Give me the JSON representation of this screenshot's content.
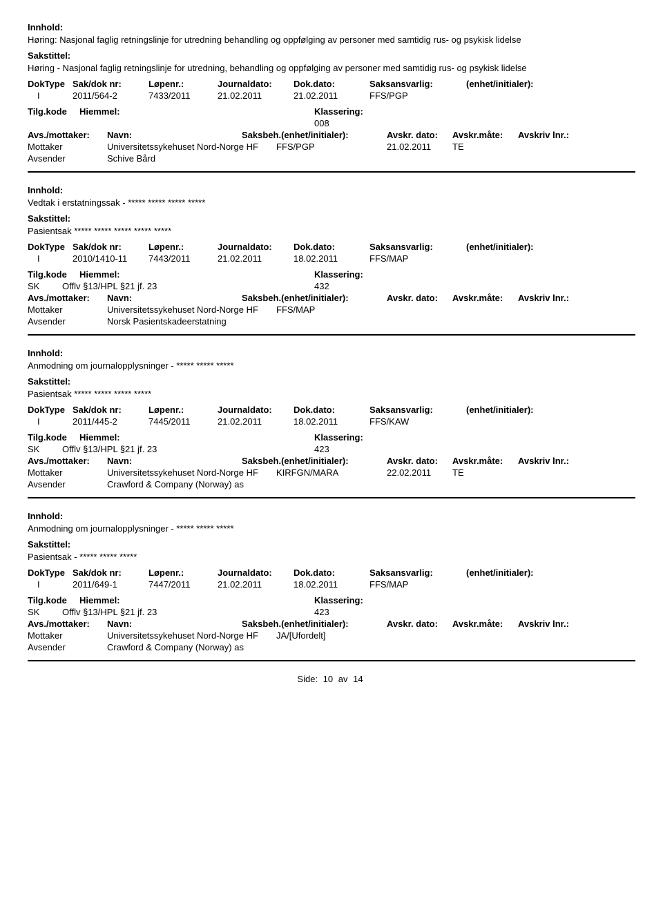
{
  "labels": {
    "innhold": "Innhold:",
    "sakstittel": "Sakstittel:",
    "doktype": "DokType",
    "sakdok": "Sak/dok nr:",
    "lopenr": "Løpenr.:",
    "journaldato": "Journaldato:",
    "dokdato": "Dok.dato:",
    "saksansvarlig": "Saksansvarlig:",
    "enhet": "(enhet/initialer):",
    "tilgkode": "Tilg.kode",
    "hjemmel": "Hiemmel:",
    "klassering": "Klassering:",
    "avsmottaker": "Avs./mottaker:",
    "navn": "Navn:",
    "saksbeh": "Saksbeh.(enhet/initialer):",
    "avskrdato": "Avskr. dato:",
    "avskrmate": "Avskr.måte:",
    "avskrivlnr": "Avskriv lnr.:",
    "mottaker": "Mottaker",
    "avsender": "Avsender",
    "side": "Side:",
    "av": "av"
  },
  "page": {
    "current": "10",
    "total": "14"
  },
  "entries": [
    {
      "innhold": "Høring: Nasjonal faglig retningslinje for utredning behandling og oppfølging av personer med samtidig rus- og psykisk lidelse",
      "sakstittel": "Høring - Nasjonal faglig retningslinje for utredning, behandling og oppfølging av personer med samtidig rus- og psykisk lidelse",
      "doktype": "I",
      "sakdok": "2011/564-2",
      "lopenr": "7433/2011",
      "journaldato": "21.02.2011",
      "dokdato": "21.02.2011",
      "saksansvarlig": "FFS/PGP",
      "tilgkode": "",
      "hjemmel": "",
      "klassering": "008",
      "mottaker_navn": "Universitetssykehuset Nord-Norge HF",
      "mottaker_saksbeh": "FFS/PGP",
      "mottaker_avskrdato": "21.02.2011",
      "mottaker_avskrmate": "TE",
      "avsender_navn": "Schive Bård"
    },
    {
      "innhold": "Vedtak i erstatningssak - ***** ***** ***** *****",
      "sakstittel": "Pasientsak ***** ***** ***** ***** *****",
      "doktype": "I",
      "sakdok": "2010/1410-11",
      "lopenr": "7443/2011",
      "journaldato": "21.02.2011",
      "dokdato": "18.02.2011",
      "saksansvarlig": "FFS/MAP",
      "tilgkode": "SK",
      "hjemmel": "Offlv §13/HPL §21 jf. 23",
      "klassering": "432",
      "mottaker_navn": "Universitetssykehuset Nord-Norge HF",
      "mottaker_saksbeh": "FFS/MAP",
      "mottaker_avskrdato": "",
      "mottaker_avskrmate": "",
      "avsender_navn": "Norsk Pasientskadeerstatning"
    },
    {
      "innhold": "Anmodning om journalopplysninger - ***** ***** *****",
      "sakstittel": "Pasientsak ***** ***** ***** *****",
      "doktype": "I",
      "sakdok": "2011/445-2",
      "lopenr": "7445/2011",
      "journaldato": "21.02.2011",
      "dokdato": "18.02.2011",
      "saksansvarlig": "FFS/KAW",
      "tilgkode": "SK",
      "hjemmel": "Offlv §13/HPL §21 jf. 23",
      "klassering": "423",
      "mottaker_navn": "Universitetssykehuset Nord-Norge HF",
      "mottaker_saksbeh": "KIRFGN/MARA",
      "mottaker_avskrdato": "22.02.2011",
      "mottaker_avskrmate": "TE",
      "avsender_navn": "Crawford & Company (Norway) as"
    },
    {
      "innhold": "Anmodning om journalopplysninger - ***** ***** *****",
      "sakstittel": "Pasientsak - ***** ***** *****",
      "doktype": "I",
      "sakdok": "2011/649-1",
      "lopenr": "7447/2011",
      "journaldato": "21.02.2011",
      "dokdato": "18.02.2011",
      "saksansvarlig": "FFS/MAP",
      "tilgkode": "SK",
      "hjemmel": "Offlv §13/HPL §21 jf. 23",
      "klassering": "423",
      "mottaker_navn": "Universitetssykehuset Nord-Norge HF",
      "mottaker_saksbeh": "JA/[Ufordelt]",
      "mottaker_avskrdato": "",
      "mottaker_avskrmate": "",
      "avsender_navn": "Crawford & Company (Norway) as"
    }
  ]
}
